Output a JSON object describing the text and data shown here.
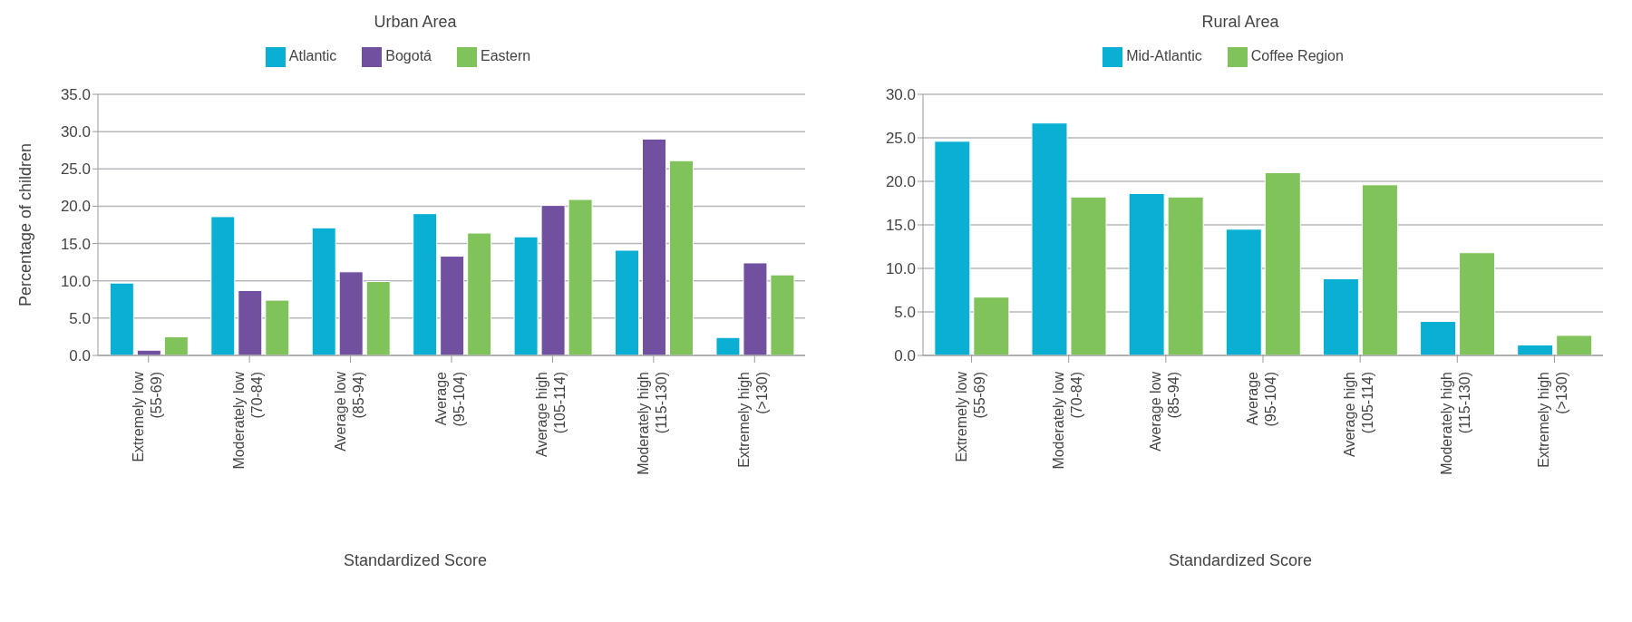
{
  "chart_data": [
    {
      "type": "bar",
      "title": "Urban Area",
      "xlabel": "Standardized Score",
      "ylabel": "Percentage of children",
      "categories": [
        "Extremely low (55-69)",
        "Moderately low (70-84)",
        "Average low (85-94)",
        "Average (95-104)",
        "Average high (105-114)",
        "Moderately high (115-130)",
        "Extremely high (>130)"
      ],
      "series": [
        {
          "name": "Atlantic",
          "color": "#0ab0d3",
          "values": [
            9.7,
            18.6,
            17.1,
            19.0,
            15.9,
            14.1,
            2.4
          ]
        },
        {
          "name": "Bogotá",
          "color": "#7250a0",
          "values": [
            0.7,
            8.7,
            11.2,
            13.3,
            20.1,
            29.0,
            12.4
          ]
        },
        {
          "name": "Eastern",
          "color": "#7fc35a",
          "values": [
            2.5,
            7.4,
            9.9,
            16.4,
            20.9,
            26.1,
            10.8
          ]
        }
      ],
      "ylim": [
        0,
        35
      ],
      "yticks": [
        {
          "value": 0,
          "label": "0.0"
        },
        {
          "value": 5,
          "label": "5.0"
        },
        {
          "value": 10,
          "label": "10.0"
        },
        {
          "value": 15,
          "label": "15.0"
        },
        {
          "value": 20,
          "label": "20.0"
        },
        {
          "value": 25,
          "label": "25.0"
        },
        {
          "value": 30,
          "label": "30.0"
        },
        {
          "value": 35,
          "label": "35.0"
        }
      ],
      "grid": "y",
      "legend": "top"
    },
    {
      "type": "bar",
      "title": "Rural Area",
      "xlabel": "Standardized Score",
      "categories": [
        "Extremely low (55-69)",
        "Moderately low (70-84)",
        "Average low (85-94)",
        "Average (95-104)",
        "Average high (105-114)",
        "Moderately high (115-130)",
        "Extremely high (>130)"
      ],
      "series": [
        {
          "name": "Mid-Atlantic",
          "color": "#0ab0d3",
          "values": [
            24.6,
            26.7,
            18.6,
            14.5,
            8.8,
            3.9,
            1.2
          ]
        },
        {
          "name": "Coffee Region",
          "color": "#7fc35a",
          "values": [
            6.7,
            18.2,
            18.2,
            21.0,
            19.6,
            11.8,
            2.3
          ]
        }
      ],
      "ylim": [
        0,
        30
      ],
      "yticks": [
        {
          "value": 0,
          "label": "0.0"
        },
        {
          "value": 5,
          "label": "5.0"
        },
        {
          "value": 10,
          "label": "10.0"
        },
        {
          "value": 15,
          "label": "15.0"
        },
        {
          "value": 20,
          "label": "20.0"
        },
        {
          "value": 25,
          "label": "25.0"
        },
        {
          "value": 30,
          "label": "30.0"
        }
      ],
      "grid": "y",
      "legend": "top"
    }
  ]
}
